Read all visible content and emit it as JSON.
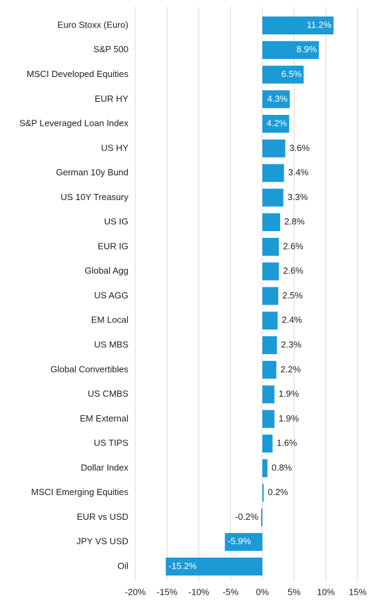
{
  "chart_data": {
    "type": "bar",
    "orientation": "horizontal",
    "categories": [
      "Euro Stoxx (Euro)",
      "S&P 500",
      "MSCI Developed Equities",
      "EUR HY",
      "S&P Leveraged Loan Index",
      "US HY",
      "German 10y Bund",
      "US 10Y Treasury",
      "US IG",
      "EUR IG",
      "Global Agg",
      "US AGG",
      "EM Local",
      "US MBS",
      "Global Convertibles",
      "US CMBS",
      "EM External",
      "US TIPS",
      "Dollar Index",
      "MSCI Emerging Equities",
      "EUR vs USD",
      "JPY VS USD",
      "Oil"
    ],
    "values": [
      11.2,
      8.9,
      6.5,
      4.3,
      4.2,
      3.6,
      3.4,
      3.3,
      2.8,
      2.6,
      2.6,
      2.5,
      2.4,
      2.3,
      2.2,
      1.9,
      1.9,
      1.6,
      0.8,
      0.2,
      -0.2,
      -5.9,
      -15.2
    ],
    "value_labels": [
      "11.2%",
      "8.9%",
      "6.5%",
      "4.3%",
      "4.2%",
      "3.6%",
      "3.4%",
      "3.3%",
      "2.8%",
      "2.6%",
      "2.6%",
      "2.5%",
      "2.4%",
      "2.3%",
      "2.2%",
      "1.9%",
      "1.9%",
      "1.6%",
      "0.8%",
      "0.2%",
      "-0.2%",
      "-5.9%",
      "-15.2%"
    ],
    "color": "#1b9ad6",
    "xlim": [
      -20,
      15
    ],
    "xticks": [
      {
        "value": -20,
        "label": "-20%"
      },
      {
        "value": -15,
        "label": "-15%"
      },
      {
        "value": -10,
        "label": "-10%"
      },
      {
        "value": -5,
        "label": "-5%"
      },
      {
        "value": 0,
        "label": "0%"
      },
      {
        "value": 5,
        "label": "5%"
      },
      {
        "value": 10,
        "label": "10%"
      },
      {
        "value": 15,
        "label": "15%"
      }
    ],
    "grid": true
  }
}
